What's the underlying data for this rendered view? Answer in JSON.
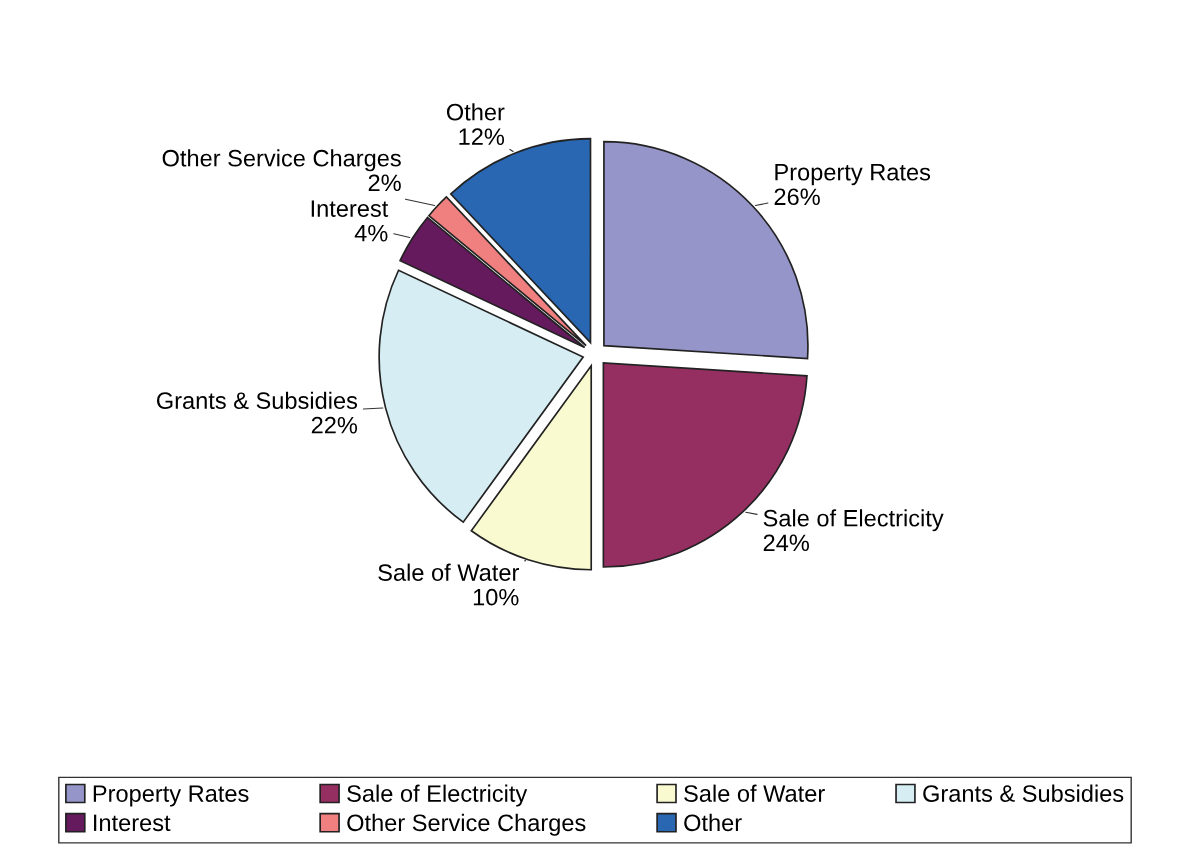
{
  "chart_data": {
    "type": "pie",
    "categories": [
      "Property Rates",
      "Sale of Electricity",
      "Sale of Water",
      "Grants & Subsidies",
      "Interest",
      "Other Service Charges",
      "Other"
    ],
    "values": [
      26,
      24,
      10,
      22,
      4,
      2,
      12
    ],
    "colors": [
      "#9595c9",
      "#952f62",
      "#fafad0",
      "#d6edf4",
      "#661a5e",
      "#f08080",
      "#2967b2"
    ],
    "value_labels": [
      "26%",
      "24%",
      "10%",
      "22%",
      "4%",
      "2%",
      "12%"
    ],
    "legend": "bottom"
  }
}
